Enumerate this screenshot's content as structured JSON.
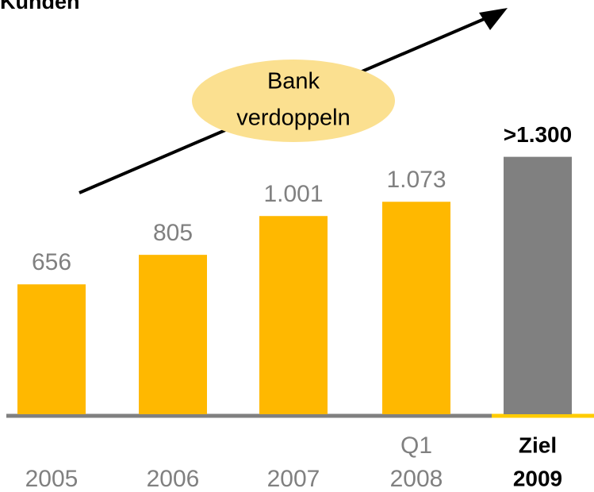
{
  "chart_data": {
    "type": "bar",
    "title": "Kunden",
    "annotation": [
      "Bank",
      "verdoppeln"
    ],
    "categories": [
      [
        "2005"
      ],
      [
        "2006"
      ],
      [
        "2007"
      ],
      [
        "Q1",
        "2008"
      ],
      [
        "Ziel",
        "2009"
      ]
    ],
    "values": [
      656,
      805,
      1001,
      1073,
      1300
    ],
    "value_labels": [
      "656",
      "805",
      "1.001",
      "1.073",
      ">1.300"
    ],
    "colors": [
      "#ffb800",
      "#ffb800",
      "#ffb800",
      "#ffb800",
      "#808080"
    ],
    "highlight": 4,
    "ylim": [
      0,
      2092
    ]
  }
}
